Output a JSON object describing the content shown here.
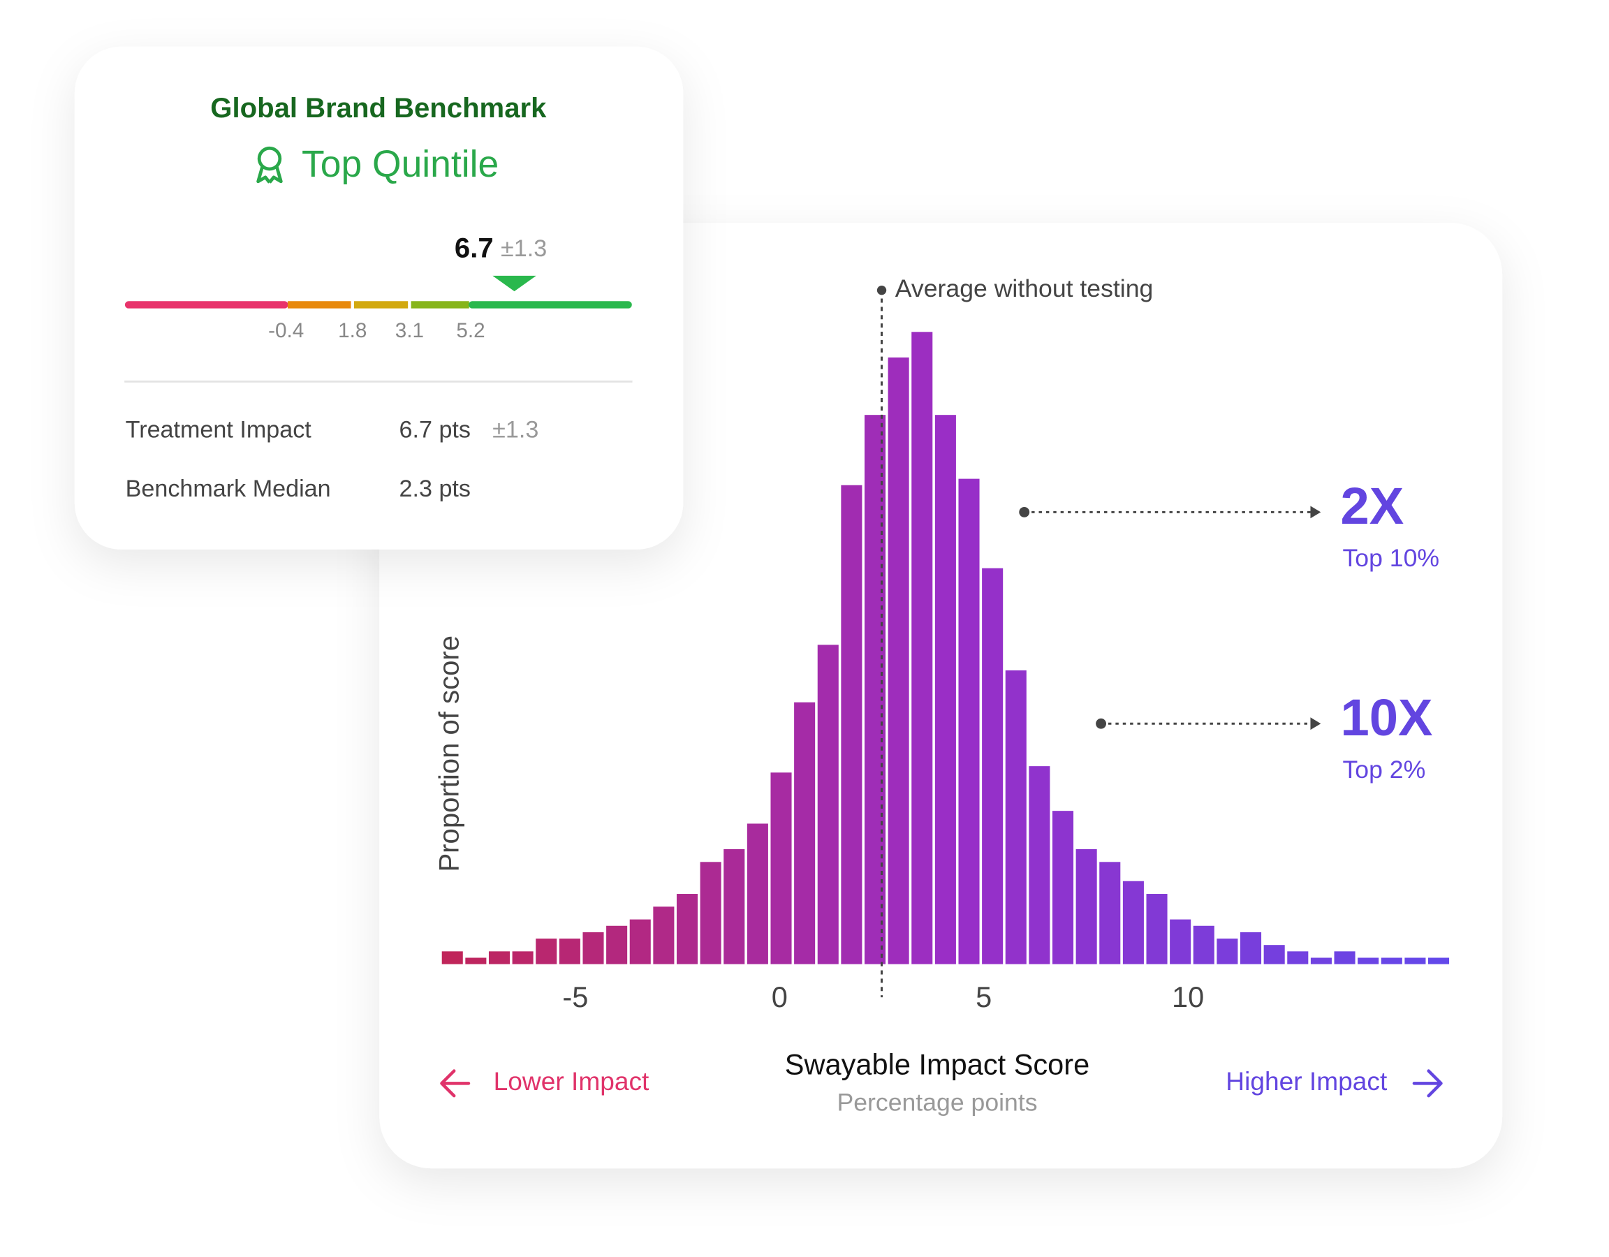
{
  "benchmark_card": {
    "title": "Global Brand Benchmark",
    "badge": "Top Quintile",
    "score": 6.7,
    "score_error": "±1.3",
    "gauge": {
      "thresholds": [
        -0.4,
        1.8,
        3.1,
        5.2
      ],
      "colors": [
        "#e8336b",
        "#e8890c",
        "#d2a910",
        "#86b51b",
        "#2ab84d"
      ]
    },
    "rows": [
      [
        "Treatment Impact",
        "6.7 pts",
        "±1.3"
      ],
      [
        "Benchmark Median",
        "2.3 pts"
      ]
    ]
  },
  "chart_data": {
    "type": "histogram",
    "bins": [
      -8.3,
      -7.725,
      -7.15,
      -6.575,
      -6,
      -5.425,
      -4.85,
      -4.275,
      -3.7,
      -3.125,
      -2.55,
      -1.975,
      -1.4,
      -0.825,
      -0.25,
      0.325,
      0.9,
      1.475,
      2.05,
      2.625,
      3.2,
      3.775,
      4.35,
      4.925,
      5.5,
      6.075,
      6.65,
      7.225,
      7.8,
      8.375,
      8.95,
      9.525,
      10.1,
      10.675,
      11.25,
      11.825,
      12.4,
      12.975,
      13.55,
      14.125,
      14.7,
      15.275,
      15.85,
      16.425
    ],
    "values": [
      0.2,
      0.1,
      0.2,
      0.2,
      0.4,
      0.4,
      0.5,
      0.6,
      0.7,
      0.9,
      1.1,
      1.6,
      1.8,
      2.2,
      3.0,
      4.1,
      5.0,
      7.5,
      8.6,
      9.5,
      9.9,
      8.6,
      7.6,
      6.2,
      4.6,
      3.1,
      2.4,
      1.8,
      1.6,
      1.3,
      1.1,
      0.7,
      0.6,
      0.4,
      0.5,
      0.3,
      0.2,
      0.1,
      0.2,
      0.1,
      0.1,
      0.1,
      0.1
    ],
    "xlim": [
      -8.3,
      16.425
    ],
    "ylim": [
      0,
      10
    ],
    "xticks": [
      -5,
      0,
      5,
      10
    ],
    "colors": [
      "#c0255a",
      "#9a2ec6",
      "#6348ea"
    ],
    "grid": false,
    "xlabel": "Swayable Impact Score",
    "xlabel_sub": "Percentage points",
    "ylabel": "Proportion of score",
    "reference_line": {
      "value": 2.5,
      "label": "Average without testing"
    },
    "annotations": [
      {
        "label": "2X",
        "sublabel": "Top 10%"
      },
      {
        "label": "10X",
        "sublabel": "Top 2%"
      }
    ],
    "direction_labels": [
      "Lower Impact",
      "Higher Impact"
    ]
  }
}
